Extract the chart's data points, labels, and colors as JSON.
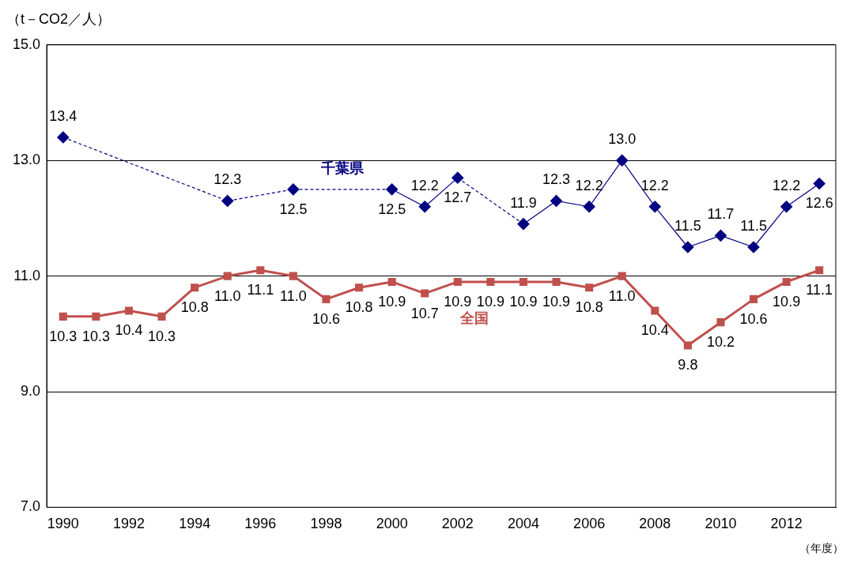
{
  "chart_data": {
    "type": "line",
    "ylabel": "（t－CO2／人）",
    "xlabel": "（年度）",
    "categories": [
      "1990",
      null,
      "1992",
      null,
      "1994",
      null,
      "1996",
      null,
      "1998",
      null,
      "2000",
      null,
      "2002",
      null,
      "2004",
      null,
      "2006",
      null,
      "2008",
      null,
      "2010",
      null,
      "2012",
      null
    ],
    "series": [
      {
        "name": "千葉県",
        "color": "#000080",
        "marker": "diamond",
        "values": [
          13.4,
          null,
          null,
          null,
          null,
          12.3,
          null,
          12.5,
          null,
          null,
          12.5,
          12.2,
          12.7,
          null,
          11.9,
          12.3,
          12.2,
          13.0,
          12.2,
          11.5,
          11.7,
          11.5,
          12.2,
          12.6
        ],
        "value_labels": [
          "13.4",
          null,
          null,
          null,
          null,
          "12.3",
          null,
          "12.5",
          null,
          null,
          "12.5",
          "12.2",
          "12.7",
          null,
          "11.9",
          "12.3",
          "12.2",
          "13.0",
          "12.2",
          "11.5",
          "11.7",
          "11.5",
          "12.2",
          "12.6"
        ]
      },
      {
        "name": "全国",
        "color": "#c0504d",
        "marker": "square",
        "values": [
          10.3,
          10.3,
          10.4,
          10.3,
          10.8,
          11.0,
          11.1,
          11.0,
          10.6,
          10.8,
          10.9,
          10.7,
          10.9,
          10.9,
          10.9,
          10.9,
          10.8,
          11.0,
          10.4,
          9.8,
          10.2,
          10.6,
          10.9,
          11.1
        ],
        "value_labels": [
          "10.3",
          "10.3",
          "10.4",
          "10.3",
          "10.8",
          "11.0",
          "11.1",
          "11.0",
          "10.6",
          "10.8",
          "10.9",
          "10.7",
          "10.9",
          "10.9",
          "10.9",
          "10.9",
          "10.8",
          "11.0",
          "10.4",
          "9.8",
          "10.2",
          "10.6",
          "10.9",
          "11.1"
        ]
      }
    ],
    "ylim": [
      7,
      15
    ],
    "yticks": [
      {
        "value": 7,
        "label": "7.0"
      },
      {
        "value": 9,
        "label": "9.0"
      },
      {
        "value": 11,
        "label": "11.0"
      },
      {
        "value": 13,
        "label": "13.0"
      },
      {
        "value": 15,
        "label": "15.0"
      }
    ],
    "grid": "y",
    "legend": false
  }
}
